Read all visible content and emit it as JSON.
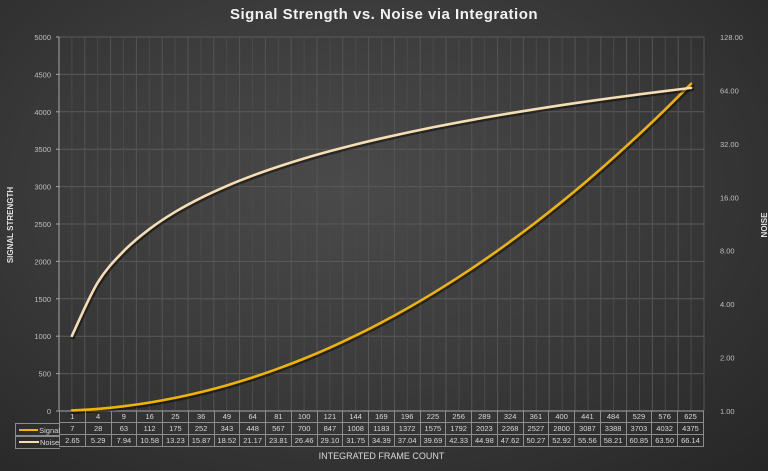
{
  "chart_data": {
    "type": "line",
    "title": "Signal Strength vs. Noise via Integration",
    "xlabel": "INTEGRATED FRAME COUNT",
    "ylabel": "SIGNAL STRENGTH",
    "y2label": "NOISE",
    "categories": [
      "1",
      "4",
      "9",
      "16",
      "25",
      "36",
      "49",
      "64",
      "81",
      "100",
      "121",
      "144",
      "169",
      "196",
      "225",
      "256",
      "289",
      "324",
      "361",
      "400",
      "441",
      "484",
      "529",
      "576",
      "625"
    ],
    "series": [
      {
        "name": "Signal",
        "axis": "left",
        "color": "#f0b400",
        "values": [
          7,
          28,
          63,
          112,
          175,
          252,
          343,
          448,
          567,
          700,
          847,
          1008,
          1183,
          1372,
          1575,
          1792,
          2023,
          2268,
          2527,
          2800,
          3087,
          3388,
          3703,
          4032,
          4375
        ],
        "labels": [
          "7",
          "28",
          "63",
          "112",
          "175",
          "252",
          "343",
          "448",
          "567",
          "700",
          "847",
          "1008",
          "1183",
          "1372",
          "1575",
          "1792",
          "2023",
          "2268",
          "2527",
          "2800",
          "3087",
          "3388",
          "3703",
          "4032",
          "4375"
        ]
      },
      {
        "name": "Noise",
        "axis": "right",
        "color": "#f5deb3",
        "values": [
          2.65,
          5.29,
          7.94,
          10.58,
          13.23,
          15.87,
          18.52,
          21.17,
          23.81,
          26.46,
          29.1,
          31.75,
          34.39,
          37.04,
          39.69,
          42.33,
          44.98,
          47.62,
          50.27,
          52.92,
          55.56,
          58.21,
          60.85,
          63.5,
          66.14
        ],
        "labels": [
          "2.65",
          "5.29",
          "7.94",
          "10.58",
          "13.23",
          "15.87",
          "18.52",
          "21.17",
          "23.81",
          "26.46",
          "29.10",
          "31.75",
          "34.39",
          "37.04",
          "39.69",
          "42.33",
          "44.98",
          "47.62",
          "50.27",
          "52.92",
          "55.56",
          "58.21",
          "60.85",
          "63.50",
          "66.14"
        ]
      }
    ],
    "ylim": [
      0,
      5000
    ],
    "yticks": [
      "0",
      "500",
      "1000",
      "1500",
      "2000",
      "2500",
      "3000",
      "3500",
      "4000",
      "4500",
      "5000"
    ],
    "y2lim": [
      1,
      128
    ],
    "y2scale": "log2",
    "y2ticks": [
      "1.00",
      "2.00",
      "4.00",
      "8.00",
      "16.00",
      "32.00",
      "64.00",
      "128.00"
    ],
    "grid": true,
    "legend_position": "data-table"
  }
}
